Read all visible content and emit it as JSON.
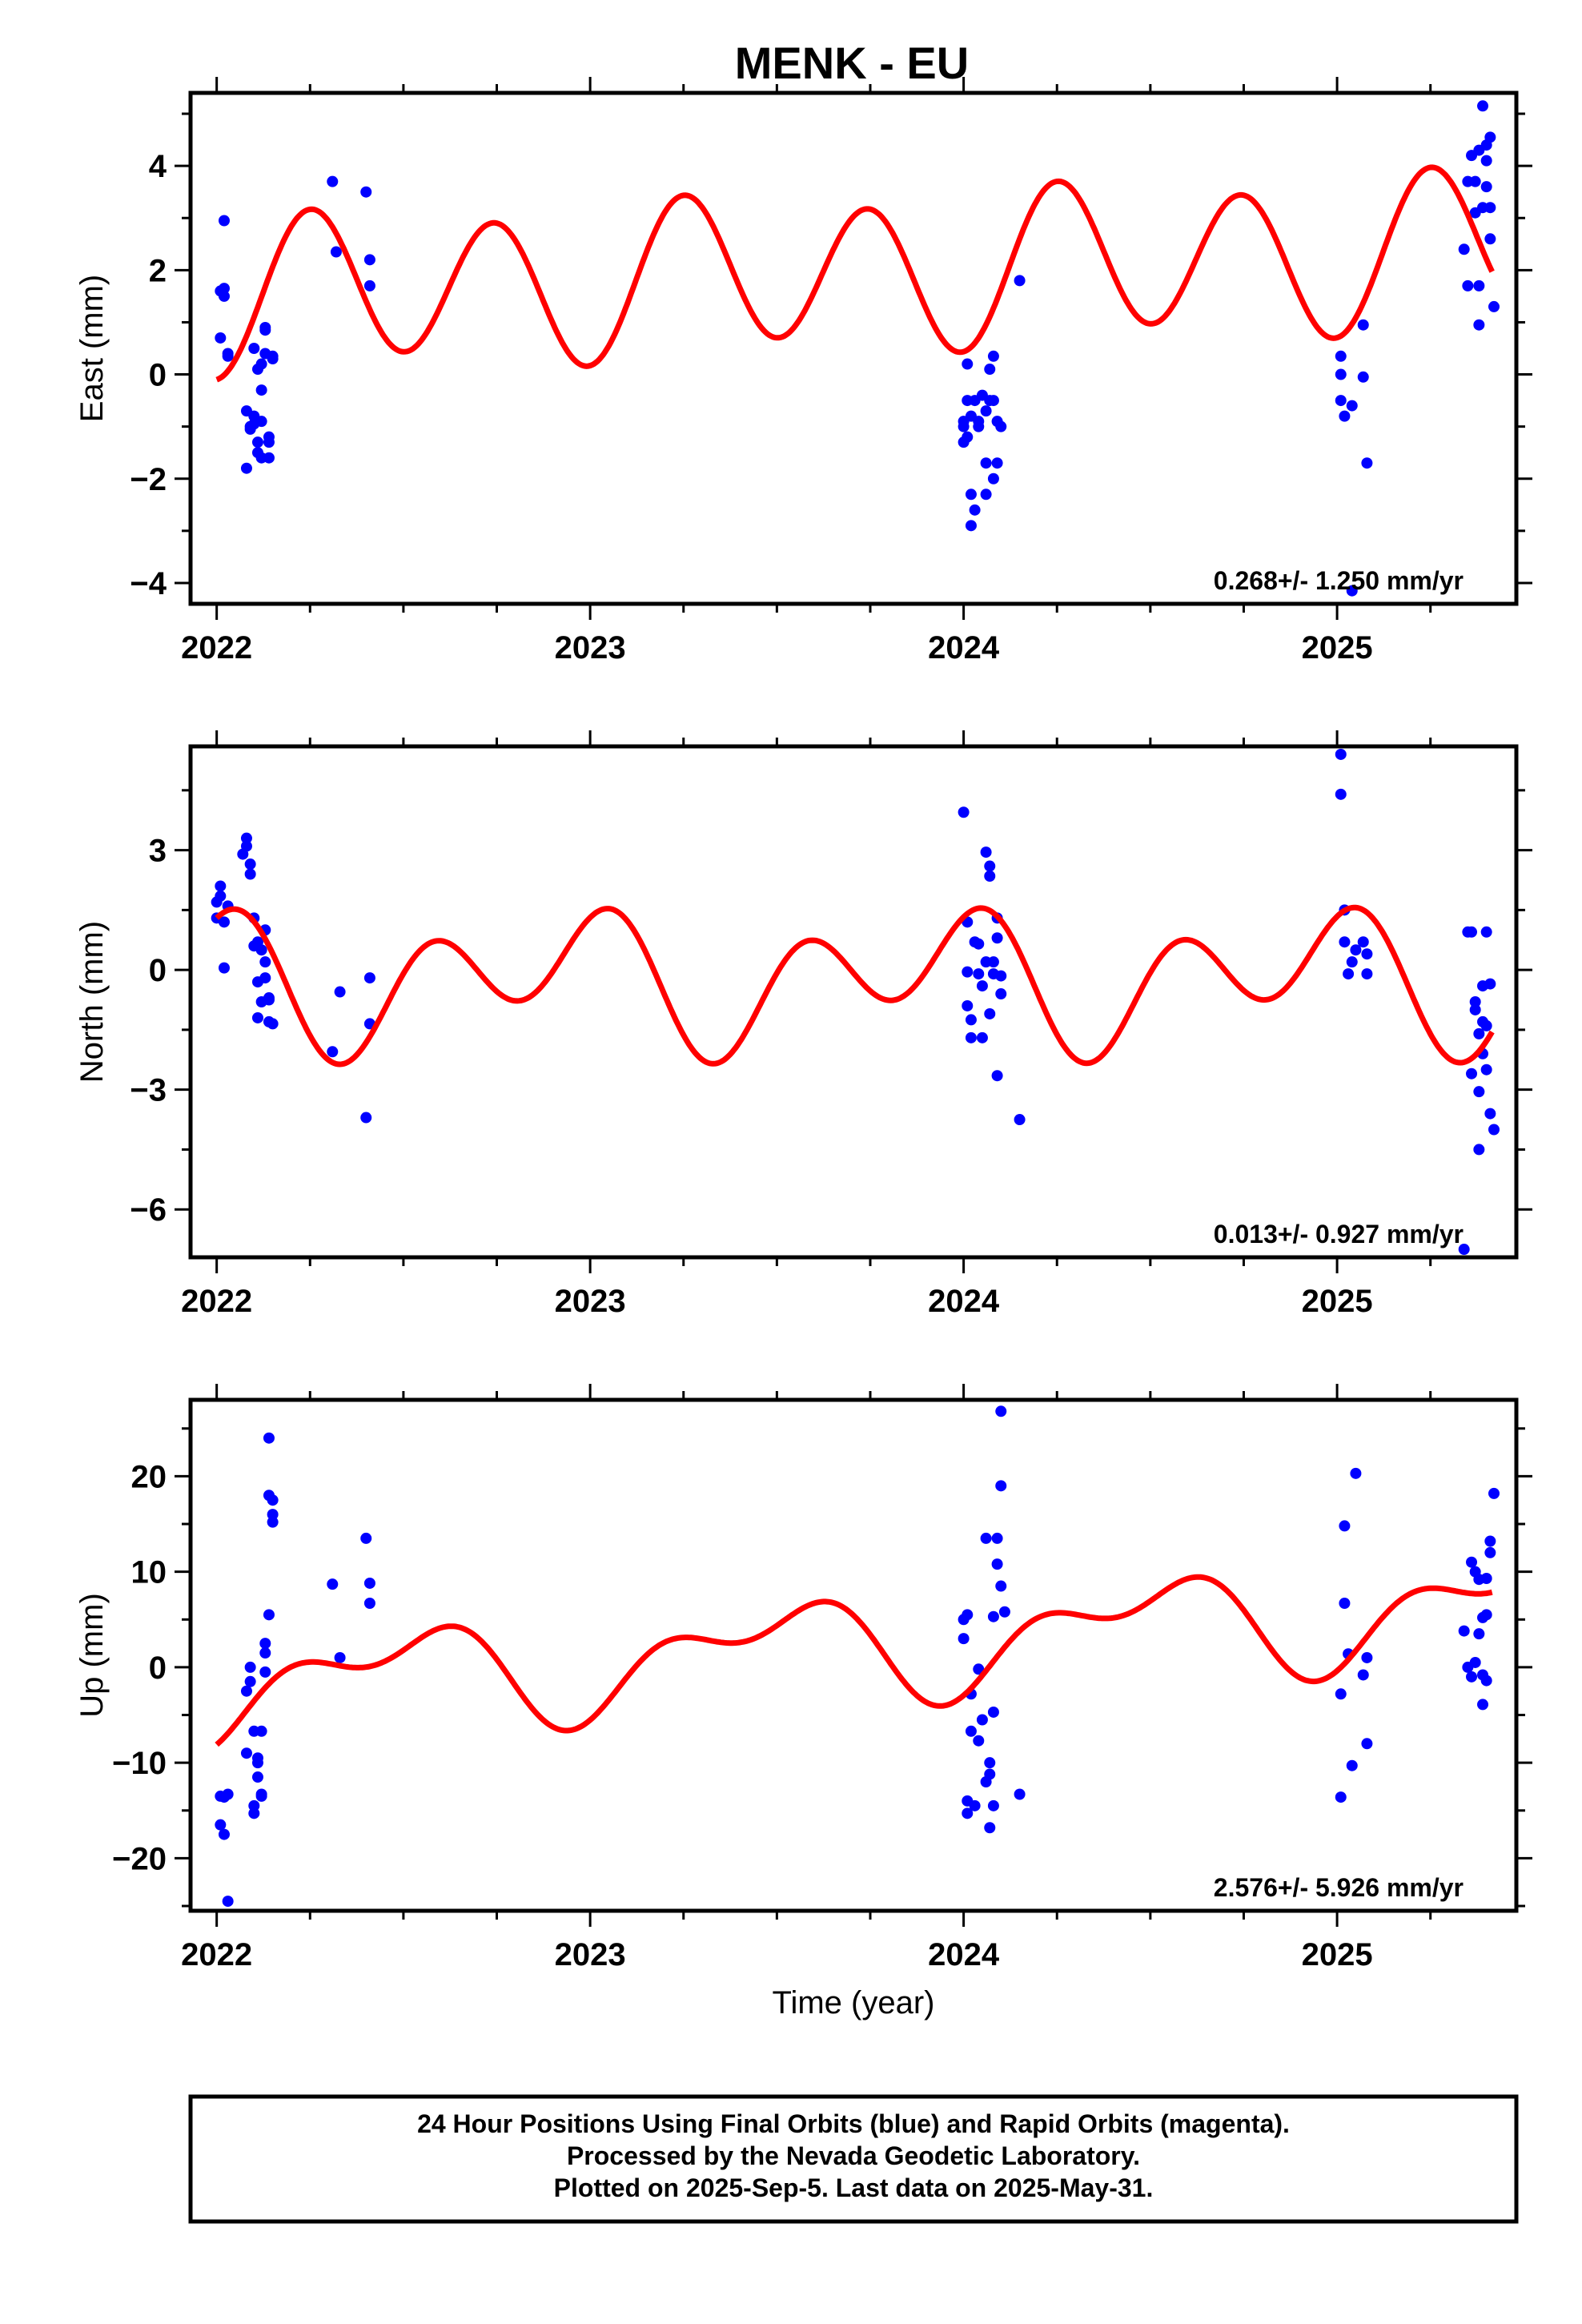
{
  "title": "MENK - EU",
  "colors": {
    "final_points": "#0000ff",
    "model_curve": "#ff0000",
    "frame": "#000000"
  },
  "chart_data": [
    {
      "type": "scatter",
      "panel": "east",
      "ylabel": "East (mm)",
      "xlabel": "",
      "xlim": [
        2021.93,
        2025.48
      ],
      "ylim": [
        -4.4,
        5.4
      ],
      "xticks": [
        2022,
        2023,
        2024,
        2025
      ],
      "xtick_labels": [
        "2022",
        "2023",
        "2024",
        "2025"
      ],
      "yticks": [
        -4,
        -2,
        0,
        2,
        4
      ],
      "ytick_labels": [
        "−4",
        "−2",
        "0",
        "2",
        "4"
      ],
      "rate": "0.268+/- 1.250 mm/yr",
      "model": {
        "offset": 1.5,
        "slope": 0.268,
        "a1": -0.2,
        "b1": 0.2,
        "a2": -1.4,
        "b2": 0.05
      },
      "points": [
        [
          2022.01,
          1.6
        ],
        [
          2022.01,
          0.7
        ],
        [
          2022.02,
          2.95
        ],
        [
          2022.02,
          1.5
        ],
        [
          2022.03,
          0.4
        ],
        [
          2022.02,
          1.65
        ],
        [
          2022.03,
          0.35
        ],
        [
          2022.08,
          -0.7
        ],
        [
          2022.08,
          -1.8
        ],
        [
          2022.09,
          -1.0
        ],
        [
          2022.09,
          -1.05
        ],
        [
          2022.1,
          -0.8
        ],
        [
          2022.1,
          -0.95
        ],
        [
          2022.1,
          0.5
        ],
        [
          2022.11,
          0.1
        ],
        [
          2022.11,
          -1.3
        ],
        [
          2022.11,
          -1.5
        ],
        [
          2022.12,
          -0.3
        ],
        [
          2022.12,
          -0.9
        ],
        [
          2022.12,
          0.2
        ],
        [
          2022.12,
          -1.6
        ],
        [
          2022.13,
          0.4
        ],
        [
          2022.13,
          0.9
        ],
        [
          2022.13,
          0.85
        ],
        [
          2022.14,
          -1.2
        ],
        [
          2022.14,
          -1.6
        ],
        [
          2022.14,
          -1.3
        ],
        [
          2022.15,
          0.3
        ],
        [
          2022.15,
          0.35
        ],
        [
          2022.31,
          3.7
        ],
        [
          2022.32,
          2.35
        ],
        [
          2022.4,
          3.5
        ],
        [
          2022.41,
          2.2
        ],
        [
          2022.41,
          1.7
        ],
        [
          2024.0,
          -1.0
        ],
        [
          2024.0,
          -0.9
        ],
        [
          2024.0,
          -1.3
        ],
        [
          2024.01,
          -0.5
        ],
        [
          2024.01,
          0.2
        ],
        [
          2024.01,
          -1.2
        ],
        [
          2024.02,
          -2.3
        ],
        [
          2024.02,
          -2.9
        ],
        [
          2024.02,
          -0.8
        ],
        [
          2024.03,
          -0.5
        ],
        [
          2024.03,
          -2.6
        ],
        [
          2024.04,
          -0.9
        ],
        [
          2024.04,
          -1.0
        ],
        [
          2024.05,
          -0.4
        ],
        [
          2024.06,
          -1.7
        ],
        [
          2024.06,
          -0.7
        ],
        [
          2024.06,
          -2.3
        ],
        [
          2024.07,
          -0.5
        ],
        [
          2024.07,
          0.1
        ],
        [
          2024.08,
          -2.0
        ],
        [
          2024.08,
          -0.5
        ],
        [
          2024.09,
          -0.9
        ],
        [
          2024.09,
          -1.7
        ],
        [
          2024.1,
          -1.0
        ],
        [
          2024.08,
          0.35
        ],
        [
          2024.15,
          1.8
        ],
        [
          2025.01,
          0.35
        ],
        [
          2025.01,
          0.0
        ],
        [
          2025.01,
          -0.5
        ],
        [
          2025.02,
          -0.8
        ],
        [
          2025.04,
          -0.6
        ],
        [
          2025.07,
          0.95
        ],
        [
          2025.07,
          -0.05
        ],
        [
          2025.08,
          -1.7
        ],
        [
          2025.04,
          -4.15
        ],
        [
          2025.34,
          2.4
        ],
        [
          2025.35,
          1.7
        ],
        [
          2025.35,
          3.7
        ],
        [
          2025.36,
          4.2
        ],
        [
          2025.37,
          3.1
        ],
        [
          2025.37,
          3.7
        ],
        [
          2025.38,
          1.7
        ],
        [
          2025.38,
          0.95
        ],
        [
          2025.38,
          4.3
        ],
        [
          2025.39,
          3.2
        ],
        [
          2025.39,
          5.15
        ],
        [
          2025.4,
          4.1
        ],
        [
          2025.4,
          3.6
        ],
        [
          2025.4,
          4.4
        ],
        [
          2025.41,
          4.55
        ],
        [
          2025.41,
          2.6
        ],
        [
          2025.42,
          1.3
        ],
        [
          2025.41,
          3.2
        ]
      ]
    },
    {
      "type": "scatter",
      "panel": "north",
      "ylabel": "North (mm)",
      "xlabel": "",
      "xlim": [
        2021.93,
        2025.48
      ],
      "ylim": [
        -7.2,
        5.6
      ],
      "xticks": [
        2022,
        2023,
        2024,
        2025
      ],
      "xtick_labels": [
        "2022",
        "2023",
        "2024",
        "2025"
      ],
      "yticks": [
        -6,
        -3,
        0,
        3
      ],
      "ytick_labels": [
        "−6",
        "−3",
        "0",
        "3"
      ],
      "rate": "0.013+/- 0.927 mm/yr",
      "model": {
        "offset": -0.25,
        "slope": 0.013,
        "a1": 0.7,
        "b1": -0.55,
        "a2": 0.85,
        "b2": 1.0
      },
      "points": [
        [
          2022.0,
          1.7
        ],
        [
          2022.0,
          1.3
        ],
        [
          2022.01,
          2.1
        ],
        [
          2022.01,
          1.85
        ],
        [
          2022.02,
          0.05
        ],
        [
          2022.02,
          1.2
        ],
        [
          2022.03,
          1.6
        ],
        [
          2022.07,
          2.9
        ],
        [
          2022.08,
          3.1
        ],
        [
          2022.08,
          3.3
        ],
        [
          2022.09,
          2.65
        ],
        [
          2022.09,
          2.4
        ],
        [
          2022.1,
          1.3
        ],
        [
          2022.1,
          0.6
        ],
        [
          2022.11,
          -0.3
        ],
        [
          2022.11,
          0.7
        ],
        [
          2022.11,
          -1.2
        ],
        [
          2022.12,
          -0.8
        ],
        [
          2022.12,
          0.5
        ],
        [
          2022.13,
          0.2
        ],
        [
          2022.13,
          1.0
        ],
        [
          2022.13,
          -0.2
        ],
        [
          2022.14,
          -1.3
        ],
        [
          2022.14,
          -0.7
        ],
        [
          2022.15,
          -1.35
        ],
        [
          2022.14,
          -0.75
        ],
        [
          2022.31,
          -2.05
        ],
        [
          2022.33,
          -0.55
        ],
        [
          2022.4,
          -3.7
        ],
        [
          2022.41,
          -0.2
        ],
        [
          2022.41,
          -1.35
        ],
        [
          2024.0,
          3.95
        ],
        [
          2024.01,
          1.2
        ],
        [
          2024.01,
          -0.05
        ],
        [
          2024.01,
          -0.9
        ],
        [
          2024.02,
          -1.7
        ],
        [
          2024.02,
          -1.25
        ],
        [
          2024.03,
          0.7
        ],
        [
          2024.04,
          0.65
        ],
        [
          2024.04,
          -0.1
        ],
        [
          2024.05,
          -0.4
        ],
        [
          2024.05,
          -1.7
        ],
        [
          2024.06,
          0.2
        ],
        [
          2024.06,
          2.95
        ],
        [
          2024.07,
          2.35
        ],
        [
          2024.07,
          2.6
        ],
        [
          2024.07,
          -1.1
        ],
        [
          2024.08,
          -0.1
        ],
        [
          2024.08,
          0.2
        ],
        [
          2024.09,
          1.3
        ],
        [
          2024.09,
          -2.65
        ],
        [
          2024.09,
          0.8
        ],
        [
          2024.1,
          -0.6
        ],
        [
          2024.1,
          -0.15
        ],
        [
          2024.15,
          -3.75
        ],
        [
          2025.01,
          5.4
        ],
        [
          2025.01,
          4.4
        ],
        [
          2025.02,
          1.5
        ],
        [
          2025.02,
          0.7
        ],
        [
          2025.03,
          -0.1
        ],
        [
          2025.04,
          0.2
        ],
        [
          2025.05,
          0.5
        ],
        [
          2025.07,
          0.7
        ],
        [
          2025.08,
          -0.1
        ],
        [
          2025.08,
          0.4
        ],
        [
          2025.34,
          -7.0
        ],
        [
          2025.35,
          0.95
        ],
        [
          2025.36,
          0.95
        ],
        [
          2025.36,
          -2.6
        ],
        [
          2025.37,
          -0.8
        ],
        [
          2025.37,
          -1.0
        ],
        [
          2025.38,
          -4.5
        ],
        [
          2025.38,
          -1.6
        ],
        [
          2025.39,
          -0.4
        ],
        [
          2025.39,
          -2.1
        ],
        [
          2025.4,
          0.95
        ],
        [
          2025.4,
          -1.4
        ],
        [
          2025.4,
          -2.5
        ],
        [
          2025.41,
          -3.6
        ],
        [
          2025.41,
          -0.35
        ],
        [
          2025.42,
          -4.0
        ],
        [
          2025.39,
          -1.3
        ],
        [
          2025.38,
          -3.05
        ]
      ]
    },
    {
      "type": "scatter",
      "panel": "up",
      "ylabel": "Up (mm)",
      "xlabel": "Time (year)",
      "xlim": [
        2021.93,
        2025.48
      ],
      "ylim": [
        -25.5,
        28.0
      ],
      "xticks": [
        2022,
        2023,
        2024,
        2025
      ],
      "xtick_labels": [
        "2022",
        "2023",
        "2024",
        "2025"
      ],
      "yticks": [
        -20,
        -10,
        0,
        10,
        20
      ],
      "ytick_labels": [
        "−20",
        "−10",
        "0",
        "10",
        "20"
      ],
      "rate": "2.576+/- 5.926 mm/yr",
      "model": {
        "offset": -2.2,
        "slope": 2.576,
        "a1": -4.3,
        "b1": 0.5,
        "a2": -1.6,
        "b2": 2.2
      },
      "points": [
        [
          2022.01,
          -13.5
        ],
        [
          2022.01,
          -16.5
        ],
        [
          2022.02,
          -13.6
        ],
        [
          2022.02,
          -17.5
        ],
        [
          2022.03,
          -24.5
        ],
        [
          2022.03,
          -13.3
        ],
        [
          2022.08,
          -9.0
        ],
        [
          2022.08,
          -2.5
        ],
        [
          2022.09,
          -1.5
        ],
        [
          2022.09,
          0.0
        ],
        [
          2022.1,
          -15.3
        ],
        [
          2022.1,
          -14.5
        ],
        [
          2022.1,
          -6.7
        ],
        [
          2022.11,
          -9.5
        ],
        [
          2022.11,
          -11.5
        ],
        [
          2022.11,
          -10.0
        ],
        [
          2022.12,
          -13.5
        ],
        [
          2022.12,
          -6.7
        ],
        [
          2022.12,
          -13.3
        ],
        [
          2022.13,
          1.5
        ],
        [
          2022.13,
          2.5
        ],
        [
          2022.14,
          5.5
        ],
        [
          2022.14,
          18.0
        ],
        [
          2022.14,
          24.0
        ],
        [
          2022.15,
          17.5
        ],
        [
          2022.15,
          16.0
        ],
        [
          2022.15,
          15.2
        ],
        [
          2022.13,
          -0.5
        ],
        [
          2022.31,
          8.7
        ],
        [
          2022.33,
          1.0
        ],
        [
          2022.4,
          13.5
        ],
        [
          2022.41,
          8.8
        ],
        [
          2022.41,
          6.7
        ],
        [
          2024.0,
          5.0
        ],
        [
          2024.0,
          3.0
        ],
        [
          2024.01,
          5.5
        ],
        [
          2024.01,
          -14.0
        ],
        [
          2024.01,
          -15.3
        ],
        [
          2024.02,
          -2.8
        ],
        [
          2024.02,
          -6.7
        ],
        [
          2024.03,
          -14.5
        ],
        [
          2024.04,
          -7.7
        ],
        [
          2024.04,
          -0.2
        ],
        [
          2024.05,
          -5.5
        ],
        [
          2024.06,
          -12.0
        ],
        [
          2024.06,
          13.5
        ],
        [
          2024.07,
          -10.0
        ],
        [
          2024.07,
          -11.2
        ],
        [
          2024.07,
          -16.8
        ],
        [
          2024.08,
          -14.5
        ],
        [
          2024.08,
          -4.7
        ],
        [
          2024.08,
          5.3
        ],
        [
          2024.09,
          10.8
        ],
        [
          2024.09,
          13.5
        ],
        [
          2024.1,
          19.0
        ],
        [
          2024.1,
          26.8
        ],
        [
          2024.1,
          8.5
        ],
        [
          2024.11,
          5.8
        ],
        [
          2024.15,
          -13.3
        ],
        [
          2025.01,
          -13.6
        ],
        [
          2025.01,
          -2.8
        ],
        [
          2025.02,
          14.8
        ],
        [
          2025.02,
          6.7
        ],
        [
          2025.03,
          1.4
        ],
        [
          2025.04,
          -10.3
        ],
        [
          2025.05,
          20.3
        ],
        [
          2025.07,
          -0.8
        ],
        [
          2025.08,
          1.0
        ],
        [
          2025.08,
          -8.0
        ],
        [
          2025.34,
          3.8
        ],
        [
          2025.35,
          0.0
        ],
        [
          2025.36,
          11.0
        ],
        [
          2025.36,
          -1.0
        ],
        [
          2025.37,
          10.0
        ],
        [
          2025.37,
          0.5
        ],
        [
          2025.38,
          9.2
        ],
        [
          2025.38,
          3.5
        ],
        [
          2025.39,
          -0.8
        ],
        [
          2025.39,
          5.2
        ],
        [
          2025.39,
          -3.9
        ],
        [
          2025.4,
          -1.4
        ],
        [
          2025.4,
          9.3
        ],
        [
          2025.41,
          12.0
        ],
        [
          2025.41,
          13.2
        ],
        [
          2025.42,
          18.2
        ],
        [
          2025.4,
          5.5
        ]
      ]
    }
  ],
  "footer": {
    "line1": "24 Hour Positions Using Final Orbits (blue) and Rapid Orbits (magenta).",
    "line2": "Processed by the Nevada Geodetic Laboratory.",
    "line3": "Plotted on 2025-Sep-5. Last data on 2025-May-31."
  }
}
